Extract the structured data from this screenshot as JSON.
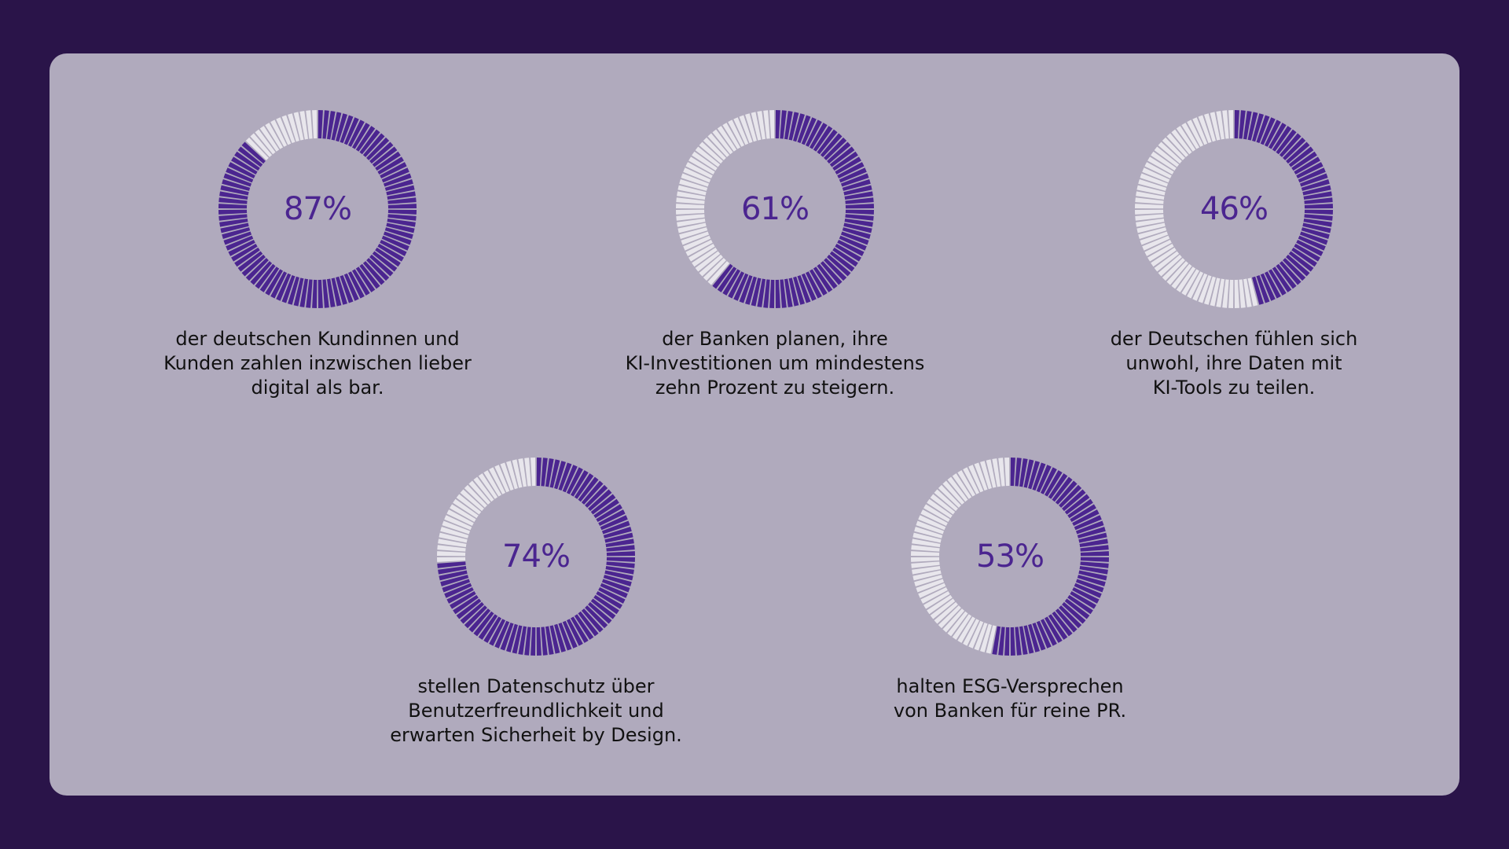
{
  "colors": {
    "background": "#2a1449",
    "panel": "#b0aabd",
    "filled": "#4b2590",
    "empty": "#e8e6ec",
    "percent_text": "#4b2590",
    "caption_text": "#111111"
  },
  "chart_data": [
    {
      "type": "pie",
      "value": 87,
      "unit": "%",
      "label": "87%",
      "caption": "der deutschen Kundinnen und\nKunden zahlen inzwischen lieber\ndigital als bar."
    },
    {
      "type": "pie",
      "value": 61,
      "unit": "%",
      "label": "61%",
      "caption": "der Banken planen, ihre\nKI-Investitionen um mindestens\nzehn Prozent zu steigern."
    },
    {
      "type": "pie",
      "value": 46,
      "unit": "%",
      "label": "46%",
      "caption": "der Deutschen fühlen sich\nunwohl, ihre Daten mit\nKI-Tools zu teilen."
    },
    {
      "type": "pie",
      "value": 74,
      "unit": "%",
      "label": "74%",
      "caption": "stellen Datenschutz über\nBenutzerfreundlichkeit und\nerwarten Sicherheit by Design."
    },
    {
      "type": "pie",
      "value": 53,
      "unit": "%",
      "label": "53%",
      "caption": "halten ESG-Versprechen\nvon Banken für reine PR."
    }
  ]
}
